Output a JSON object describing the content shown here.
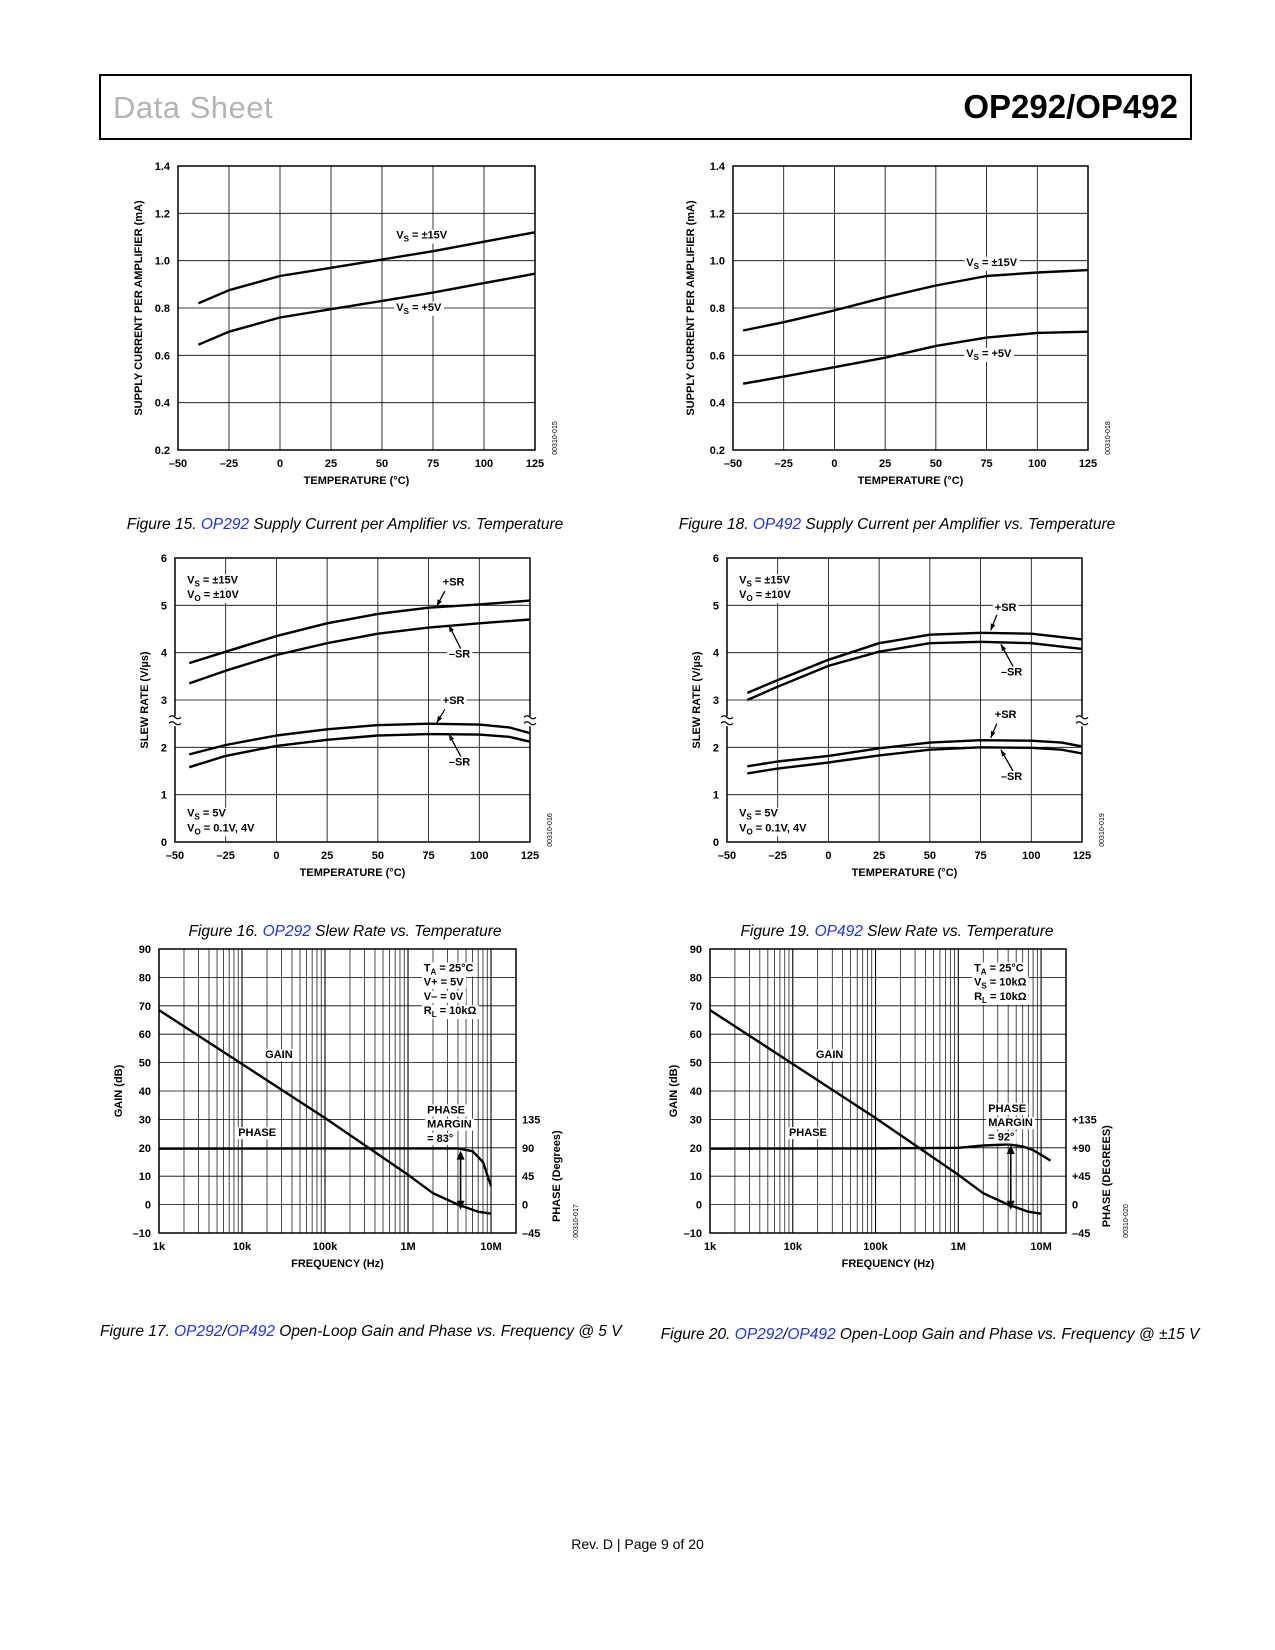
{
  "header": {
    "left_title": "Data Sheet",
    "right_title": "OP292/OP492"
  },
  "footer": {
    "text": "Rev. D | Page 9 of 20"
  },
  "captions": [
    {
      "prefix": "Figure 15. ",
      "links": [
        "OP292"
      ],
      "suffix": " Supply Current per Amplifier vs. Temperature"
    },
    {
      "prefix": "Figure 18. ",
      "links": [
        "OP492"
      ],
      "suffix": " Supply Current per Amplifier vs. Temperature"
    },
    {
      "prefix": "Figure 16. ",
      "links": [
        "OP292"
      ],
      "suffix": " Slew Rate vs. Temperature"
    },
    {
      "prefix": "Figure 19. ",
      "links": [
        "OP492"
      ],
      "suffix": " Slew Rate vs. Temperature"
    },
    {
      "prefix": "Figure 17. ",
      "links": [
        "OP292",
        "OP492"
      ],
      "suffix": " Open-Loop Gain and Phase vs. Frequency @ 5 V"
    },
    {
      "prefix": "Figure 20. ",
      "links": [
        "OP292",
        "OP492"
      ],
      "suffix": " Open-Loop Gain and Phase vs. Frequency @ ±15 V"
    }
  ],
  "chart_data": [
    {
      "type": "line",
      "id": "fig15",
      "xlabel": "TEMPERATURE (°C)",
      "ylabel": "SUPPLY CURRENT PER AMPLIFIER (mA)",
      "xlim": [
        -50,
        125
      ],
      "ylim": [
        0.2,
        1.4
      ],
      "xticks": [
        -50,
        -25,
        0,
        25,
        50,
        75,
        100,
        125
      ],
      "xtick_labels": [
        "–50",
        "–25",
        "0",
        "25",
        "50",
        "75",
        "100",
        "125"
      ],
      "yticks": [
        0.2,
        0.4,
        0.6,
        0.8,
        1.0,
        1.2,
        1.4
      ],
      "ytick_labels": [
        "0.2",
        "0.4",
        "0.6",
        "0.8",
        "1.0",
        "1.2",
        "1.4"
      ],
      "grid": true,
      "code": "00310-015",
      "series": [
        {
          "name": "VS = ±15V",
          "x": [
            -40,
            -25,
            0,
            25,
            50,
            75,
            100,
            125
          ],
          "y": [
            0.82,
            0.875,
            0.935,
            0.97,
            1.005,
            1.04,
            1.08,
            1.12
          ]
        },
        {
          "name": "VS = +5V",
          "x": [
            -40,
            -25,
            0,
            25,
            50,
            75,
            100,
            125
          ],
          "y": [
            0.645,
            0.7,
            0.76,
            0.795,
            0.83,
            0.865,
            0.905,
            0.945
          ]
        }
      ],
      "labels": [
        {
          "main": "V",
          "sub": "S",
          "rest": " = ±15V",
          "x": 57,
          "y": 1.11
        },
        {
          "main": "V",
          "sub": "S",
          "rest": " = +5V",
          "x": 57,
          "y": 0.805
        }
      ]
    },
    {
      "type": "line",
      "id": "fig18",
      "xlabel": "TEMPERATURE (°C)",
      "ylabel": "SUPPLY CURRENT PER AMPLIFIER (mA)",
      "xlim": [
        -50,
        125
      ],
      "ylim": [
        0.2,
        1.4
      ],
      "xticks": [
        -50,
        -25,
        0,
        25,
        50,
        75,
        100,
        125
      ],
      "xtick_labels": [
        "–50",
        "–25",
        "0",
        "25",
        "50",
        "75",
        "100",
        "125"
      ],
      "yticks": [
        0.2,
        0.4,
        0.6,
        0.8,
        1.0,
        1.2,
        1.4
      ],
      "ytick_labels": [
        "0.2",
        "0.4",
        "0.6",
        "0.8",
        "1.0",
        "1.2",
        "1.4"
      ],
      "grid": true,
      "code": "00310-018",
      "series": [
        {
          "name": "VS = ±15V",
          "x": [
            -45,
            -25,
            0,
            25,
            50,
            75,
            100,
            125
          ],
          "y": [
            0.705,
            0.74,
            0.79,
            0.845,
            0.895,
            0.935,
            0.95,
            0.96
          ]
        },
        {
          "name": "VS = +5V",
          "x": [
            -45,
            -25,
            0,
            25,
            50,
            75,
            100,
            125
          ],
          "y": [
            0.48,
            0.51,
            0.55,
            0.59,
            0.64,
            0.675,
            0.695,
            0.7
          ]
        }
      ],
      "labels": [
        {
          "main": "V",
          "sub": "S",
          "rest": " = ±15V",
          "x": 65,
          "y": 0.995
        },
        {
          "main": "V",
          "sub": "S",
          "rest": " = +5V",
          "x": 65,
          "y": 0.61
        }
      ]
    },
    {
      "type": "line",
      "id": "fig16",
      "xlabel": "TEMPERATURE (°C)",
      "ylabel": "SLEW RATE (V/µs)",
      "xlim": [
        -50,
        125
      ],
      "ylim": [
        0,
        6
      ],
      "xticks": [
        -50,
        -25,
        0,
        25,
        50,
        75,
        100,
        125
      ],
      "xtick_labels": [
        "–50",
        "–25",
        "0",
        "25",
        "50",
        "75",
        "100",
        "125"
      ],
      "yticks": [
        0,
        1,
        2,
        3,
        4,
        5,
        6
      ],
      "ytick_labels": [
        "0",
        "1",
        "2",
        "3",
        "4",
        "5",
        "6"
      ],
      "grid": true,
      "break_y": 2.55,
      "code": "00310-016",
      "series": [
        {
          "name": "+SR (VS = ±15V)",
          "x": [
            -43,
            -25,
            0,
            25,
            50,
            75,
            100,
            125
          ],
          "y": [
            3.78,
            4.02,
            4.35,
            4.62,
            4.82,
            4.95,
            5.02,
            5.1
          ]
        },
        {
          "name": "–SR (VS = ±15V)",
          "x": [
            -43,
            -25,
            0,
            25,
            50,
            75,
            100,
            125
          ],
          "y": [
            3.35,
            3.62,
            3.95,
            4.2,
            4.4,
            4.53,
            4.62,
            4.7
          ]
        },
        {
          "name": "+SR (VS = 5V)",
          "x": [
            -43,
            -25,
            0,
            25,
            50,
            75,
            100,
            115,
            125
          ],
          "y": [
            1.85,
            2.05,
            2.25,
            2.38,
            2.47,
            2.5,
            2.48,
            2.42,
            2.3
          ]
        },
        {
          "name": "–SR (VS = 5V)",
          "x": [
            -43,
            -25,
            0,
            25,
            50,
            75,
            100,
            115,
            125
          ],
          "y": [
            1.58,
            1.82,
            2.03,
            2.16,
            2.25,
            2.28,
            2.27,
            2.22,
            2.12
          ]
        }
      ],
      "labels": [
        {
          "main": "V",
          "sub": "S",
          "rest": " = ±15V",
          "x": -44,
          "y": 5.55
        },
        {
          "main": "V",
          "sub": "O",
          "rest": " = ±10V",
          "x": -44,
          "y": 5.24
        },
        {
          "text": "+SR",
          "x": 82,
          "y": 5.5,
          "arrow": [
            83,
            5.3,
            79,
            4.98
          ]
        },
        {
          "text": "–SR",
          "x": 85,
          "y": 3.98,
          "arrow": [
            91,
            4.07,
            85,
            4.58
          ]
        },
        {
          "text": "+SR",
          "x": 82,
          "y": 3.0,
          "arrow": [
            83,
            2.8,
            79,
            2.52
          ]
        },
        {
          "text": "–SR",
          "x": 85,
          "y": 1.7,
          "arrow": [
            91,
            1.8,
            85,
            2.28
          ]
        },
        {
          "main": "V",
          "sub": "S",
          "rest": " = 5V",
          "x": -44,
          "y": 0.62
        },
        {
          "main": "V",
          "sub": "O",
          "rest": " = 0.1V, 4V",
          "x": -44,
          "y": 0.31
        }
      ]
    },
    {
      "type": "line",
      "id": "fig19",
      "xlabel": "TEMPERATURE (°C)",
      "ylabel": "SLEW RATE (V/µs)",
      "xlim": [
        -50,
        125
      ],
      "ylim": [
        0,
        6
      ],
      "xticks": [
        -50,
        -25,
        0,
        25,
        50,
        75,
        100,
        125
      ],
      "xtick_labels": [
        "–50",
        "–25",
        "0",
        "25",
        "50",
        "75",
        "100",
        "125"
      ],
      "yticks": [
        0,
        1,
        2,
        3,
        4,
        5,
        6
      ],
      "ytick_labels": [
        "0",
        "1",
        "2",
        "3",
        "4",
        "5",
        "6"
      ],
      "grid": true,
      "break_y": 2.55,
      "code": "00310-019",
      "series": [
        {
          "name": "+SR (VS = ±15V)",
          "x": [
            -40,
            -25,
            0,
            25,
            50,
            75,
            100,
            125
          ],
          "y": [
            3.15,
            3.42,
            3.85,
            4.2,
            4.38,
            4.42,
            4.4,
            4.28
          ]
        },
        {
          "name": "–SR (VS = ±15V)",
          "x": [
            -40,
            -25,
            0,
            25,
            50,
            75,
            100,
            125
          ],
          "y": [
            3.0,
            3.28,
            3.72,
            4.02,
            4.2,
            4.23,
            4.2,
            4.08
          ]
        },
        {
          "name": "+SR (VS = 5V)",
          "x": [
            -40,
            -25,
            0,
            25,
            50,
            75,
            100,
            115,
            125
          ],
          "y": [
            1.6,
            1.7,
            1.82,
            1.98,
            2.1,
            2.15,
            2.14,
            2.1,
            2.02
          ]
        },
        {
          "name": "–SR (VS = 5V)",
          "x": [
            -40,
            -25,
            0,
            25,
            50,
            75,
            100,
            115,
            125
          ],
          "y": [
            1.45,
            1.55,
            1.68,
            1.83,
            1.95,
            2.0,
            1.99,
            1.95,
            1.87
          ]
        }
      ],
      "labels": [
        {
          "main": "V",
          "sub": "S",
          "rest": " = ±15V",
          "x": -44,
          "y": 5.55
        },
        {
          "main": "V",
          "sub": "O",
          "rest": " = ±10V",
          "x": -44,
          "y": 5.24
        },
        {
          "text": "+SR",
          "x": 82,
          "y": 4.97,
          "arrow": [
            83,
            4.8,
            80,
            4.47
          ]
        },
        {
          "text": "–SR",
          "x": 85,
          "y": 3.6,
          "arrow": [
            91,
            3.71,
            85,
            4.18
          ]
        },
        {
          "text": "+SR",
          "x": 82,
          "y": 2.7,
          "arrow": [
            83,
            2.5,
            80,
            2.2
          ]
        },
        {
          "text": "–SR",
          "x": 85,
          "y": 1.39,
          "arrow": [
            91,
            1.5,
            85,
            1.95
          ]
        },
        {
          "main": "V",
          "sub": "S",
          "rest": " = 5V",
          "x": -44,
          "y": 0.62
        },
        {
          "main": "V",
          "sub": "O",
          "rest": " = 0.1V, 4V",
          "x": -44,
          "y": 0.31
        }
      ]
    },
    {
      "type": "line",
      "id": "fig17",
      "xscale": "log",
      "xlabel": "FREQUENCY (Hz)",
      "ylabel": "GAIN (dB)",
      "y2label": "PHASE (Degrees)",
      "xlim": [
        1000,
        20000000
      ],
      "ylim": [
        -10,
        90
      ],
      "xticks": [
        1000,
        10000,
        100000,
        1000000,
        10000000
      ],
      "xtick_labels": [
        "1k",
        "10k",
        "100k",
        "1M",
        "10M"
      ],
      "yticks": [
        -10,
        0,
        10,
        20,
        30,
        40,
        50,
        60,
        70,
        80,
        90
      ],
      "ytick_labels": [
        "–10",
        "0",
        "10",
        "20",
        "30",
        "40",
        "50",
        "60",
        "70",
        "80",
        "90"
      ],
      "y2ticks": [
        -10,
        0,
        10,
        20,
        30
      ],
      "y2tick_labels": [
        "–45",
        "0",
        "45",
        "90",
        "135"
      ],
      "grid": true,
      "code": "00310-017",
      "series": [
        {
          "name": "GAIN",
          "x": [
            1000,
            10000,
            100000,
            1000000,
            2000000,
            4000000,
            7000000,
            10000000
          ],
          "y": [
            68.5,
            49.5,
            30.5,
            10.5,
            4.0,
            0.0,
            -2.5,
            -3.2
          ]
        },
        {
          "name": "PHASE",
          "x": [
            1000,
            100000,
            1000000,
            4000000,
            6000000,
            8000000,
            10000000
          ],
          "y": [
            19.7,
            19.8,
            19.8,
            19.8,
            18.8,
            15.0,
            6.5
          ]
        }
      ],
      "labels": [
        {
          "main": "T",
          "sub": "A",
          "rest": " = 25°C",
          "x": 1550000,
          "y": 83.5
        },
        {
          "text": "V+ = 5V",
          "x": 1550000,
          "y": 78.5
        },
        {
          "text": "V– = 0V",
          "x": 1550000,
          "y": 73.5
        },
        {
          "main": "R",
          "sub": "L",
          "rest": " = 10kΩ",
          "x": 1550000,
          "y": 68.5
        },
        {
          "text": "GAIN",
          "x": 19000,
          "y": 53.0
        },
        {
          "text": "PHASE",
          "x": 9000,
          "y": 25.5
        },
        {
          "text": "PHASE",
          "x": 1700000,
          "y": 33.5
        },
        {
          "text": "MARGIN",
          "x": 1700000,
          "y": 28.5
        },
        {
          "text": "= 83°",
          "x": 1700000,
          "y": 23.5
        }
      ],
      "margin_arrow": {
        "x": 4300000,
        "y1": 19.0,
        "y2": -1.8
      }
    },
    {
      "type": "line",
      "id": "fig20",
      "xscale": "log",
      "xlabel": "FREQUENCY (Hz)",
      "ylabel": "GAIN (dB)",
      "y2label": "PHASE (DEGREES)",
      "xlim": [
        1000,
        20000000
      ],
      "ylim": [
        -10,
        90
      ],
      "xticks": [
        1000,
        10000,
        100000,
        1000000,
        10000000
      ],
      "xtick_labels": [
        "1k",
        "10k",
        "100k",
        "1M",
        "10M"
      ],
      "yticks": [
        -10,
        0,
        10,
        20,
        30,
        40,
        50,
        60,
        70,
        80,
        90
      ],
      "ytick_labels": [
        "–10",
        "0",
        "10",
        "20",
        "30",
        "40",
        "50",
        "60",
        "70",
        "80",
        "90"
      ],
      "y2ticks": [
        -10,
        0,
        10,
        20,
        30
      ],
      "y2tick_labels": [
        "–45",
        "0",
        "+45",
        "+90",
        "+135"
      ],
      "grid": true,
      "code": "00310-020",
      "series": [
        {
          "name": "GAIN",
          "x": [
            1000,
            10000,
            100000,
            1000000,
            2000000,
            4000000,
            7000000,
            10000000
          ],
          "y": [
            68.5,
            49.5,
            30.5,
            10.5,
            4.0,
            0.0,
            -2.5,
            -3.2
          ]
        },
        {
          "name": "PHASE",
          "x": [
            1000,
            100000,
            1000000,
            2000000,
            4000000,
            6000000,
            8000000,
            10000000,
            13000000
          ],
          "y": [
            19.7,
            19.8,
            20.0,
            20.8,
            21.2,
            20.5,
            19.2,
            17.5,
            15.5
          ]
        }
      ],
      "labels": [
        {
          "main": "T",
          "sub": "A",
          "rest": " = 25°C",
          "x": 1550000,
          "y": 83.5
        },
        {
          "main": "V",
          "sub": "S",
          "rest": " = 10kΩ",
          "x": 1550000,
          "y": 78.5
        },
        {
          "main": "R",
          "sub": "L",
          "rest": " = 10kΩ",
          "x": 1550000,
          "y": 73.5
        },
        {
          "text": "GAIN",
          "x": 19000,
          "y": 53.0
        },
        {
          "text": "PHASE",
          "x": 9000,
          "y": 25.5
        },
        {
          "text": "PHASE",
          "x": 2300000,
          "y": 34.0
        },
        {
          "text": "MARGIN",
          "x": 2300000,
          "y": 29.0
        },
        {
          "text": "= 92°",
          "x": 2300000,
          "y": 24.0
        }
      ],
      "margin_arrow": {
        "x": 4300000,
        "y1": 21.0,
        "y2": -1.8
      }
    }
  ]
}
